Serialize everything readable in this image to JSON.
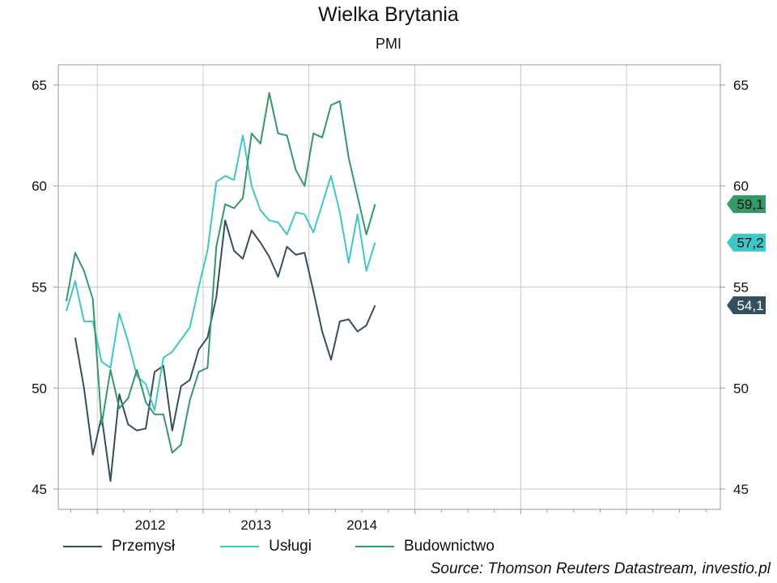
{
  "chart_data": {
    "type": "line",
    "title": "Wielka Brytania",
    "subtitle": "PMI",
    "x_tick_labels": [
      "2012",
      "2013",
      "2014"
    ],
    "yticks": [
      45,
      50,
      55,
      60,
      65
    ],
    "ylim": [
      44,
      66
    ],
    "x_start": "2011-09",
    "grid": true,
    "legend_position": "bottom-left",
    "series": [
      {
        "name": "Przemysł",
        "color": "#344f5e",
        "start": "2011-10",
        "values": [
          52.5,
          50.0,
          46.7,
          48.6,
          45.4,
          49.7,
          48.2,
          47.9,
          48.0,
          50.8,
          51.1,
          47.9,
          50.1,
          50.4,
          51.9,
          52.5,
          54.5,
          58.3,
          56.8,
          56.4,
          57.8,
          57.2,
          56.5,
          55.5,
          57.0,
          56.6,
          56.7,
          54.8,
          52.8,
          51.4,
          53.3,
          53.4,
          52.8,
          53.1,
          54.1
        ],
        "end_label": "54,1"
      },
      {
        "name": "Usługi",
        "color": "#3cc8c8",
        "start": "2011-09",
        "values": [
          53.8,
          55.3,
          53.3,
          53.3,
          51.3,
          51.0,
          53.7,
          52.3,
          50.6,
          50.2,
          48.9,
          51.5,
          51.8,
          52.4,
          53.0,
          55.0,
          56.8,
          60.2,
          60.5,
          60.3,
          62.5,
          60.0,
          58.8,
          58.3,
          58.2,
          57.6,
          58.7,
          58.6,
          57.7,
          59.1,
          60.5,
          58.7,
          56.2,
          58.6,
          55.8,
          57.2
        ],
        "end_label": "57,2"
      },
      {
        "name": "Budownictwo",
        "color": "#339966",
        "start": "2011-09",
        "values": [
          54.3,
          56.7,
          55.8,
          54.4,
          48.2,
          50.9,
          49.0,
          49.5,
          50.9,
          49.3,
          48.7,
          48.7,
          46.8,
          47.2,
          49.4,
          50.8,
          51.0,
          57.0,
          59.1,
          58.9,
          59.4,
          62.6,
          62.1,
          64.6,
          62.6,
          62.5,
          60.8,
          60.0,
          62.6,
          62.4,
          64.0,
          64.2,
          61.4,
          59.5,
          57.6,
          59.1
        ],
        "end_label": "59,1"
      }
    ]
  },
  "legend": {
    "items": [
      {
        "label": "Przemysł"
      },
      {
        "label": "Usługi"
      },
      {
        "label": "Budownictwo"
      }
    ]
  },
  "source": "Source: Thomson Reuters Datastream, investio.pl"
}
